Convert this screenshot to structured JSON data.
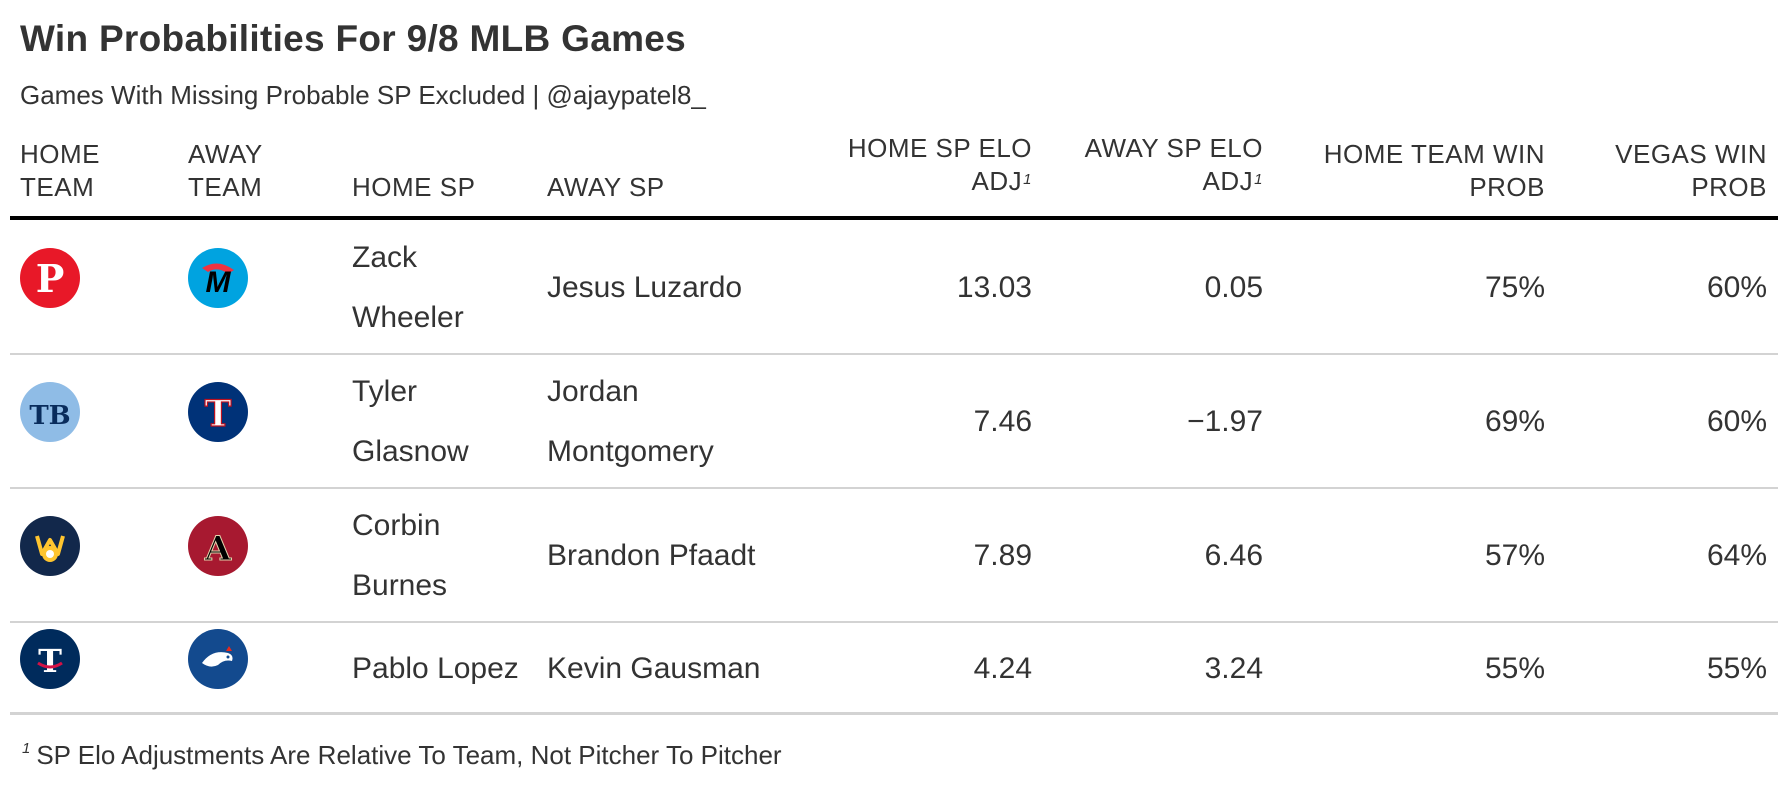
{
  "title": "Win Probabilities For 9/8 MLB Games",
  "subtitle": "Games With Missing Probable SP Excluded | @ajaypatel8_",
  "columns": {
    "home_team": [
      "HOME",
      "TEAM"
    ],
    "away_team": [
      "AWAY",
      "TEAM"
    ],
    "home_sp": "HOME SP",
    "away_sp": "AWAY SP",
    "home_sp_elo": [
      "HOME SP ELO",
      "ADJ"
    ],
    "away_sp_elo": [
      "AWAY SP ELO",
      "ADJ"
    ],
    "home_win_prob": [
      "HOME TEAM WIN",
      "PROB"
    ],
    "vegas_win_prob": [
      "VEGAS WIN",
      "PROB"
    ],
    "footnote_mark": "1"
  },
  "rows": [
    {
      "home_logo": "phillies-logo",
      "away_logo": "marlins-logo",
      "home_sp": [
        "Zack",
        "Wheeler"
      ],
      "away_sp": [
        "Jesus Luzardo"
      ],
      "home_sp_elo": "13.03",
      "away_sp_elo": "0.05",
      "home_win_prob": "75%",
      "vegas_win_prob": "60%"
    },
    {
      "home_logo": "rays-logo",
      "away_logo": "rangers-logo",
      "home_sp": [
        "Tyler",
        "Glasnow"
      ],
      "away_sp": [
        "Jordan",
        "Montgomery"
      ],
      "home_sp_elo": "7.46",
      "away_sp_elo": "−1.97",
      "home_win_prob": "69%",
      "vegas_win_prob": "60%"
    },
    {
      "home_logo": "brewers-logo",
      "away_logo": "diamondbacks-logo",
      "home_sp": [
        "Corbin",
        "Burnes"
      ],
      "away_sp": [
        "Brandon Pfaadt"
      ],
      "home_sp_elo": "7.89",
      "away_sp_elo": "6.46",
      "home_win_prob": "57%",
      "vegas_win_prob": "64%"
    },
    {
      "home_logo": "twins-logo",
      "away_logo": "blue-jays-logo",
      "home_sp": [
        "Pablo Lopez"
      ],
      "away_sp": [
        "Kevin Gausman"
      ],
      "home_sp_elo": "4.24",
      "away_sp_elo": "3.24",
      "home_win_prob": "55%",
      "vegas_win_prob": "55%"
    }
  ],
  "footnote": {
    "mark": "1",
    "text": "SP Elo Adjustments Are Relative To Team, Not Pitcher To Pitcher"
  },
  "colors": {
    "phillies": "#E81828",
    "marlins": "#00A3E0",
    "rays": "#8FBCE6",
    "rangers": "#003278",
    "brewers": "#12284B",
    "diamondbacks": "#A71930",
    "twins": "#002B5C",
    "blue_jays": "#134A8E"
  }
}
